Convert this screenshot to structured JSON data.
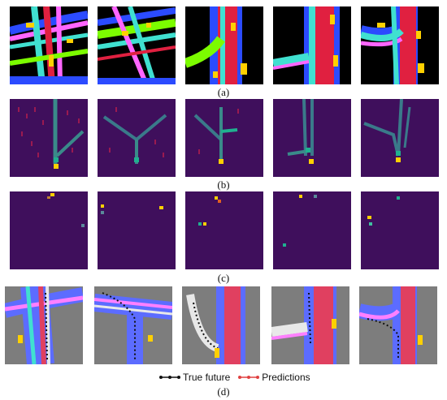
{
  "figure": {
    "row_a": {
      "label": "(a)"
    },
    "row_b": {
      "label": "(b)"
    },
    "row_c": {
      "label": "(c)"
    },
    "row_d": {
      "label": "(d)"
    },
    "legend": {
      "true_future": "True future",
      "predictions": "Predictions"
    }
  },
  "colors": {
    "heatmap_bg": "#3f0f5c",
    "heatmap_grid": "#4a1a6a",
    "road_gray": "#7d7d7d",
    "true_future": "#111111",
    "prediction": "#e04040"
  }
}
